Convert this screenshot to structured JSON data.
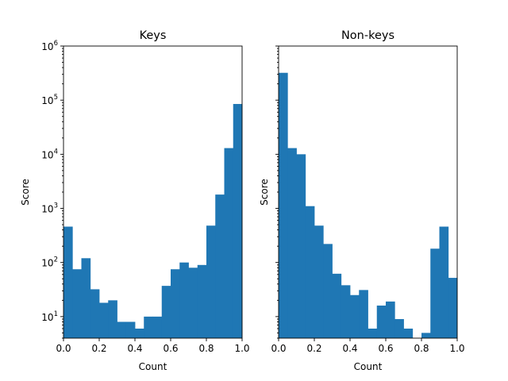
{
  "chart_data": [
    {
      "type": "histogram",
      "title": "Keys",
      "xlabel": "Count",
      "ylabel": "Score",
      "xlim": [
        0.0,
        1.0
      ],
      "ylim": [
        4,
        1000000
      ],
      "yscale": "log",
      "x_ticks": [
        "0.0",
        "0.2",
        "0.4",
        "0.6",
        "0.8",
        "1.0"
      ],
      "y_ticks": [
        {
          "base": "10",
          "exp": "1"
        },
        {
          "base": "10",
          "exp": "2"
        },
        {
          "base": "10",
          "exp": "3"
        },
        {
          "base": "10",
          "exp": "4"
        },
        {
          "base": "10",
          "exp": "5"
        },
        {
          "base": "10",
          "exp": "6"
        }
      ],
      "bin_edges": [
        0.0,
        0.05,
        0.1,
        0.15,
        0.2,
        0.25,
        0.3,
        0.35,
        0.4,
        0.45,
        0.5,
        0.55,
        0.6,
        0.65,
        0.7,
        0.75,
        0.8,
        0.85,
        0.9,
        0.95,
        1.0
      ],
      "values": [
        460,
        75,
        120,
        32,
        18,
        20,
        8,
        8,
        6,
        10,
        10,
        37,
        75,
        100,
        80,
        90,
        480,
        1800,
        13000,
        85000
      ]
    },
    {
      "type": "histogram",
      "title": "Non-keys",
      "xlabel": "Count",
      "ylabel": "Score",
      "xlim": [
        0.0,
        1.0
      ],
      "ylim": [
        4,
        1000000
      ],
      "yscale": "log",
      "x_ticks": [
        "0.0",
        "0.2",
        "0.4",
        "0.6",
        "0.8",
        "1.0"
      ],
      "y_ticks": [],
      "bin_edges": [
        0.0,
        0.05,
        0.1,
        0.15,
        0.2,
        0.25,
        0.3,
        0.35,
        0.4,
        0.45,
        0.5,
        0.55,
        0.6,
        0.65,
        0.7,
        0.75,
        0.8,
        0.85,
        0.9,
        0.95,
        1.0
      ],
      "values": [
        320000,
        13000,
        10000,
        1100,
        480,
        220,
        62,
        38,
        25,
        31,
        6,
        16,
        19,
        9,
        6,
        0,
        5,
        180,
        460,
        52
      ]
    }
  ],
  "colors": {
    "bar": "#1f77b4"
  }
}
